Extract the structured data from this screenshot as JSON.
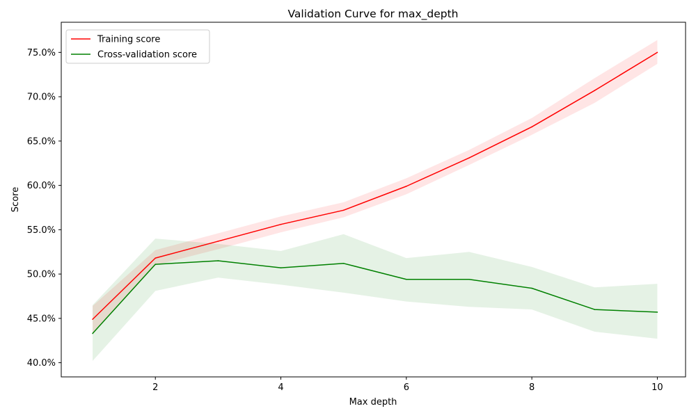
{
  "chart_data": {
    "type": "line",
    "title": "Validation Curve for max_depth",
    "xlabel": "Max depth",
    "ylabel": "Score",
    "x": [
      1,
      2,
      3,
      4,
      5,
      6,
      7,
      8,
      9,
      10
    ],
    "xlim": [
      0.5,
      10.45
    ],
    "ylim": [
      0.384,
      0.784
    ],
    "xticks": [
      2,
      4,
      6,
      8,
      10
    ],
    "xtick_labels": [
      "2",
      "4",
      "6",
      "8",
      "10"
    ],
    "yticks": [
      0.4,
      0.45,
      0.5,
      0.55,
      0.6,
      0.65,
      0.7,
      0.75
    ],
    "ytick_labels": [
      "40.0%",
      "45.0%",
      "50.0%",
      "55.0%",
      "60.0%",
      "65.0%",
      "70.0%",
      "75.0%"
    ],
    "grid": false,
    "legend_position": "upper-left",
    "series": [
      {
        "name": "Training score",
        "color": "#ff0000",
        "band_color": "#ff0000",
        "band_opacity": 0.1,
        "values": [
          0.449,
          0.518,
          0.537,
          0.556,
          0.572,
          0.599,
          0.631,
          0.666,
          0.707,
          0.75
        ],
        "band_low": [
          0.433,
          0.51,
          0.528,
          0.547,
          0.564,
          0.59,
          0.623,
          0.657,
          0.693,
          0.737
        ],
        "band_high": [
          0.464,
          0.527,
          0.546,
          0.565,
          0.581,
          0.608,
          0.64,
          0.676,
          0.721,
          0.764
        ]
      },
      {
        "name": "Cross-validation score",
        "color": "#008000",
        "band_color": "#008000",
        "band_opacity": 0.1,
        "values": [
          0.433,
          0.511,
          0.515,
          0.507,
          0.512,
          0.494,
          0.494,
          0.484,
          0.46,
          0.457
        ],
        "band_low": [
          0.402,
          0.481,
          0.496,
          0.488,
          0.479,
          0.469,
          0.463,
          0.46,
          0.435,
          0.427
        ],
        "band_high": [
          0.465,
          0.54,
          0.534,
          0.526,
          0.545,
          0.518,
          0.525,
          0.508,
          0.485,
          0.489
        ]
      }
    ]
  }
}
